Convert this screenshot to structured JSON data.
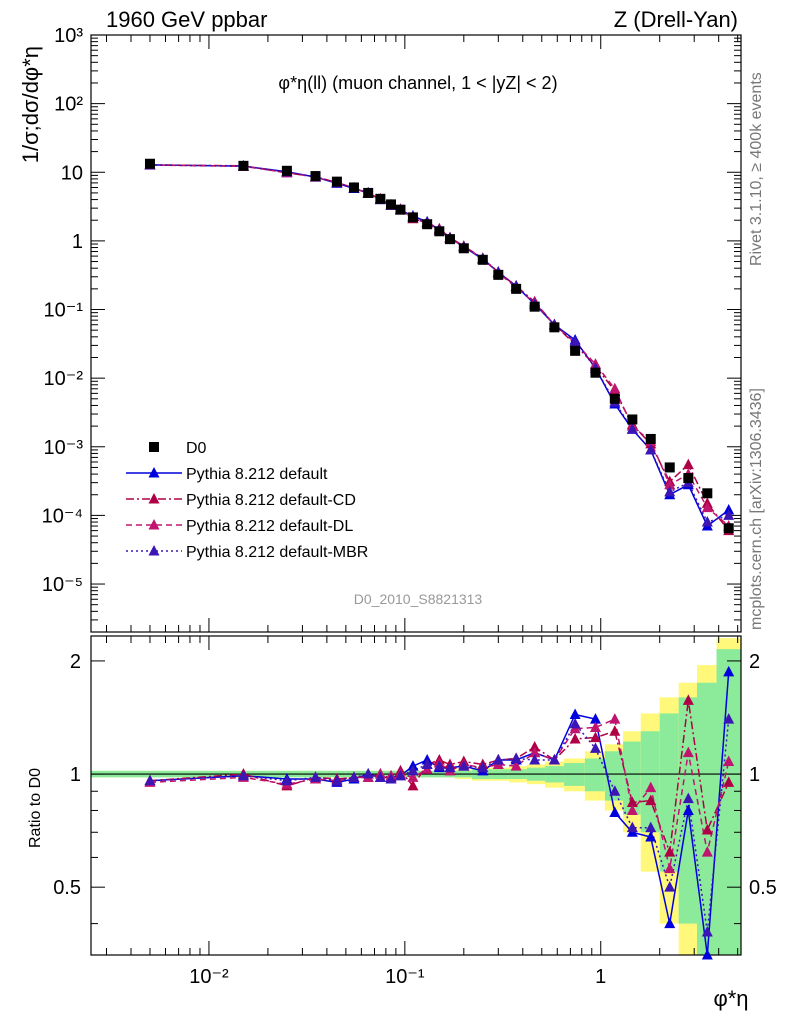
{
  "header": {
    "energy_label": "1960 GeV ppbar",
    "process_label": "Z (Drell-Yan)"
  },
  "side_labels": {
    "rivet": "Rivet 3.1.10, ≥ 400k events",
    "source": "mcplots.cern.ch [arXiv:1306.3436]"
  },
  "chart_data": [
    {
      "panel": "main",
      "type": "scatter",
      "title": "φ*η(ll) (muon channel, 1 < |yZ| < 2)",
      "analysis_label": "D0_2010_S8821313",
      "ylabel": "1/σ;dσ/dφ*η",
      "xlabel": "φ*η",
      "xscale": "log",
      "yscale": "log",
      "xlim": [
        0.0025,
        5.2
      ],
      "ylim": [
        2e-06,
        1000
      ],
      "y_tick_labels": [
        "10⁻⁵",
        "10⁻⁴",
        "10⁻³",
        "10⁻²",
        "10⁻¹",
        "1",
        "10",
        "10²",
        "10³"
      ],
      "legend": {
        "placement": "lower-left",
        "entries": [
          {
            "label": "D0",
            "color": "#000000",
            "marker": "square",
            "line": "none"
          },
          {
            "label": "Pythia 8.212 default",
            "color": "#0000dd",
            "marker": "triangle",
            "line": "solid"
          },
          {
            "label": "Pythia 8.212 default-CD",
            "color": "#b00045",
            "marker": "triangle",
            "line": "dashdot"
          },
          {
            "label": "Pythia 8.212 default-DL",
            "color": "#c0156f",
            "marker": "triangle",
            "line": "dashed"
          },
          {
            "label": "Pythia 8.212 default-MBR",
            "color": "#3b16b5",
            "marker": "triangle",
            "line": "dotted"
          }
        ]
      },
      "x": [
        0.005,
        0.015,
        0.025,
        0.035,
        0.045,
        0.055,
        0.065,
        0.075,
        0.085,
        0.095,
        0.11,
        0.13,
        0.15,
        0.17,
        0.2,
        0.25,
        0.3,
        0.37,
        0.46,
        0.58,
        0.74,
        0.94,
        1.18,
        1.45,
        1.8,
        2.25,
        2.8,
        3.5,
        4.5
      ],
      "series": [
        {
          "name": "D0",
          "values": [
            13.3,
            12.4,
            10.5,
            8.8,
            7.3,
            6.0,
            5.0,
            4.1,
            3.4,
            2.85,
            2.2,
            1.75,
            1.38,
            1.06,
            0.78,
            0.53,
            0.32,
            0.2,
            0.11,
            0.055,
            0.025,
            0.012,
            0.005,
            0.0025,
            0.0013,
            0.0005,
            0.00035,
            0.00021,
            6.5e-05
          ]
        },
        {
          "name": "Pythia 8.212 default",
          "values": [
            12.8,
            12.3,
            10.2,
            8.5,
            6.9,
            5.8,
            5.0,
            4.0,
            3.3,
            2.82,
            2.3,
            1.9,
            1.44,
            1.1,
            0.82,
            0.54,
            0.35,
            0.22,
            0.12,
            0.06,
            0.036,
            0.014,
            0.0042,
            0.0018,
            0.0009,
            0.0002,
            0.00028,
            7e-05,
            0.00012
          ]
        },
        {
          "name": "Pythia 8.212 default-CD",
          "values": [
            12.8,
            12.4,
            9.8,
            8.6,
            7.1,
            5.9,
            4.9,
            4.1,
            3.3,
            2.9,
            2.1,
            1.85,
            1.5,
            1.12,
            0.84,
            0.56,
            0.35,
            0.22,
            0.13,
            0.06,
            0.031,
            0.015,
            0.0065,
            0.0021,
            0.0011,
            0.00031,
            0.00055,
            0.00015,
            6e-05
          ]
        },
        {
          "name": "Pythia 8.212 default-DL",
          "values": [
            12.7,
            12.2,
            9.9,
            8.5,
            7.0,
            5.9,
            4.9,
            4.1,
            3.35,
            2.85,
            2.15,
            1.8,
            1.48,
            1.08,
            0.83,
            0.55,
            0.34,
            0.21,
            0.125,
            0.06,
            0.033,
            0.016,
            0.007,
            0.002,
            0.0012,
            0.00028,
            0.0004,
            0.00013,
            7e-05
          ]
        },
        {
          "name": "Pythia 8.212 default-MBR",
          "values": [
            12.8,
            12.3,
            10.1,
            8.6,
            7.0,
            5.9,
            5.0,
            4.0,
            3.3,
            2.83,
            2.25,
            1.85,
            1.45,
            1.1,
            0.82,
            0.55,
            0.35,
            0.22,
            0.12,
            0.06,
            0.034,
            0.014,
            0.0045,
            0.0018,
            0.0009,
            0.00022,
            0.0003,
            8e-05,
            0.0001
          ]
        }
      ]
    },
    {
      "panel": "ratio",
      "type": "line",
      "ylabel": "Ratio to D0",
      "ylim": [
        0.33,
        2.33
      ],
      "y_tick_labels": [
        "0.5",
        "1",
        "2"
      ],
      "x_tick_labels": [
        "10⁻²",
        "10⁻¹",
        "1"
      ],
      "x": [
        0.005,
        0.015,
        0.025,
        0.035,
        0.045,
        0.055,
        0.065,
        0.075,
        0.085,
        0.095,
        0.11,
        0.13,
        0.15,
        0.17,
        0.2,
        0.25,
        0.3,
        0.37,
        0.46,
        0.58,
        0.74,
        0.94,
        1.18,
        1.45,
        1.8,
        2.25,
        2.8,
        3.5,
        4.5
      ],
      "band_x_edges": [
        0.0025,
        0.01,
        0.02,
        0.03,
        0.04,
        0.05,
        0.06,
        0.07,
        0.08,
        0.09,
        0.1,
        0.12,
        0.14,
        0.16,
        0.18,
        0.22,
        0.28,
        0.34,
        0.42,
        0.52,
        0.65,
        0.83,
        1.05,
        1.3,
        1.6,
        2.0,
        2.5,
        3.1,
        3.9,
        5.2
      ],
      "stat_band_half_width": [
        0.02,
        0.02,
        0.02,
        0.02,
        0.02,
        0.02,
        0.02,
        0.02,
        0.02,
        0.02,
        0.02,
        0.02,
        0.02,
        0.02,
        0.02,
        0.03,
        0.03,
        0.03,
        0.04,
        0.05,
        0.07,
        0.1,
        0.15,
        0.22,
        0.3,
        0.45,
        0.6,
        0.75,
        1.15
      ],
      "total_band_half_width": [
        0.02,
        0.02,
        0.02,
        0.02,
        0.02,
        0.02,
        0.02,
        0.02,
        0.02,
        0.02,
        0.02,
        0.02,
        0.02,
        0.02,
        0.03,
        0.04,
        0.04,
        0.05,
        0.06,
        0.08,
        0.1,
        0.15,
        0.2,
        0.3,
        0.45,
        0.6,
        0.75,
        0.95,
        1.3
      ],
      "series": [
        {
          "name": "Pythia 8.212 default",
          "values": [
            0.96,
            0.99,
            0.97,
            0.97,
            0.95,
            0.97,
            1.0,
            0.98,
            0.98,
            0.99,
            1.05,
            1.09,
            1.04,
            1.04,
            1.05,
            1.02,
            1.09,
            1.09,
            1.14,
            1.09,
            1.44,
            1.4,
            0.79,
            0.7,
            0.68,
            0.4,
            0.8,
            0.33,
            1.87
          ]
        },
        {
          "name": "Pythia 8.212 default-CD",
          "values": [
            0.96,
            1.0,
            0.93,
            0.98,
            0.97,
            0.98,
            0.98,
            1.0,
            0.97,
            1.02,
            0.93,
            1.06,
            1.09,
            1.06,
            1.08,
            1.06,
            1.09,
            1.1,
            1.18,
            1.09,
            1.24,
            1.25,
            1.3,
            0.84,
            0.85,
            0.62,
            1.57,
            0.71,
            0.95
          ]
        },
        {
          "name": "Pythia 8.212 default-DL",
          "values": [
            0.95,
            0.98,
            0.94,
            0.97,
            0.96,
            0.98,
            0.98,
            1.0,
            0.99,
            1.0,
            0.98,
            1.03,
            1.07,
            1.02,
            1.06,
            1.04,
            1.06,
            1.05,
            1.14,
            1.09,
            1.32,
            1.33,
            1.4,
            0.8,
            0.92,
            0.56,
            1.14,
            0.62,
            1.08
          ]
        },
        {
          "name": "Pythia 8.212 default-MBR",
          "values": [
            0.96,
            0.99,
            0.96,
            0.98,
            0.96,
            0.98,
            1.0,
            0.98,
            0.97,
            0.99,
            1.02,
            1.06,
            1.05,
            1.04,
            1.05,
            1.04,
            1.09,
            1.1,
            1.09,
            1.09,
            1.36,
            1.17,
            0.9,
            0.72,
            0.72,
            0.5,
            0.86,
            0.38,
            1.4
          ]
        }
      ]
    }
  ]
}
